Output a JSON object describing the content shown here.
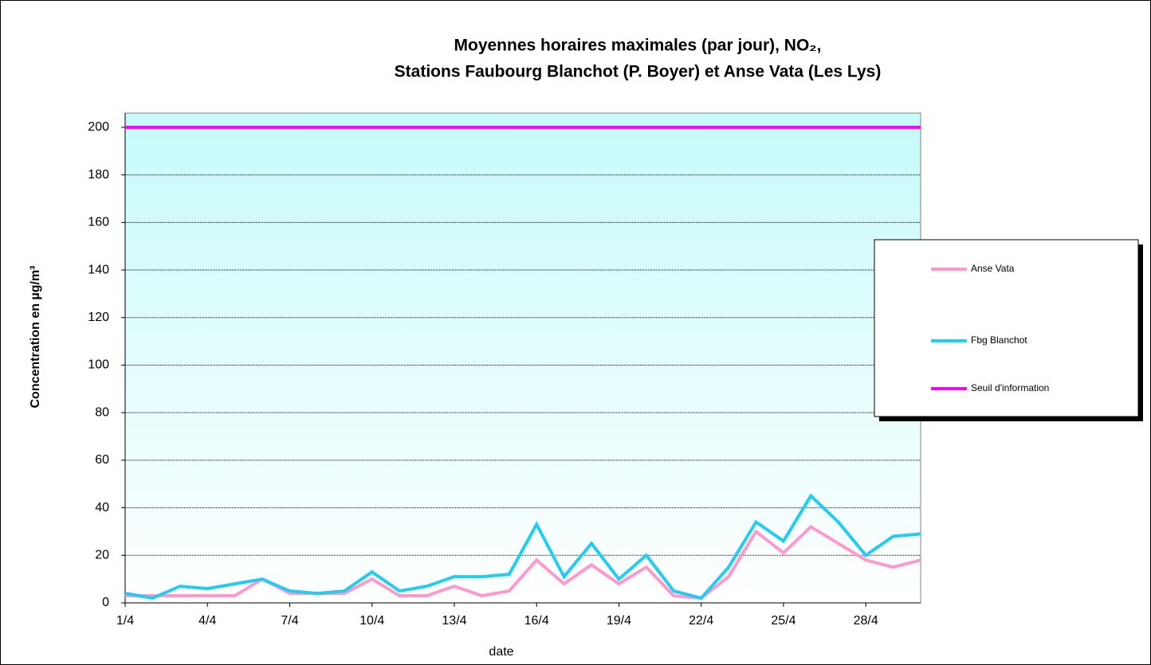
{
  "chart_data": {
    "type": "line",
    "title": [
      "Moyennes horaires maximales (par jour), NO₂,",
      "Stations Faubourg Blanchot (P. Boyer) et Anse Vata (Les Lys)"
    ],
    "x_label": "date",
    "y_label": "Concentration en µg/m³",
    "categories": [
      "1/4",
      null,
      null,
      "4/4",
      null,
      null,
      "7/4",
      null,
      null,
      "10/4",
      null,
      null,
      "13/4",
      null,
      null,
      "16/4",
      null,
      null,
      "19/4",
      null,
      null,
      "22/4",
      null,
      null,
      "25/4",
      null,
      null,
      "28/4",
      null,
      null
    ],
    "series": [
      {
        "name": "Anse Vata",
        "color": "#ff99cc",
        "values": [
          3,
          3,
          3,
          3,
          3,
          10,
          4,
          4,
          4,
          10,
          3,
          3,
          7,
          3,
          5,
          18,
          8,
          16,
          8,
          15,
          3,
          2,
          11,
          30,
          21,
          32,
          25,
          18,
          15,
          18
        ]
      },
      {
        "name": "Fbg Blanchot",
        "color": "#22ccf2",
        "values": [
          4,
          2,
          7,
          6,
          8,
          10,
          5,
          4,
          5,
          13,
          5,
          7,
          11,
          11,
          12,
          33,
          11,
          25,
          10,
          20,
          5,
          2,
          15,
          34,
          26,
          45,
          34,
          20,
          28,
          29
        ]
      },
      {
        "name": "Seuil d'information",
        "color": "#ff00ff",
        "values": [
          200,
          200,
          200,
          200,
          200,
          200,
          200,
          200,
          200,
          200,
          200,
          200,
          200,
          200,
          200,
          200,
          200,
          200,
          200,
          200,
          200,
          200,
          200,
          200,
          200,
          200,
          200,
          200,
          200,
          200
        ]
      }
    ],
    "ylim": [
      0,
      206
    ],
    "yticks": [
      0,
      20,
      40,
      60,
      80,
      100,
      120,
      140,
      160,
      180,
      200
    ],
    "grid": true,
    "legend": "right"
  }
}
